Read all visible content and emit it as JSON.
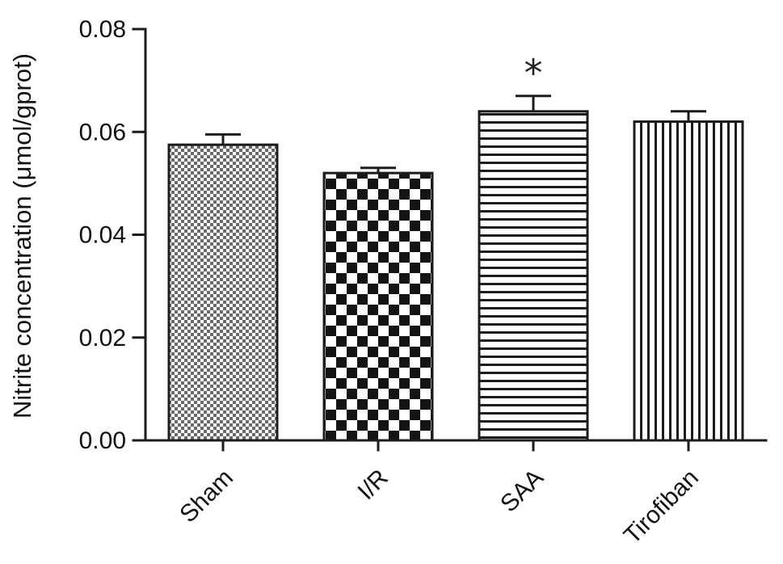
{
  "chart_data": {
    "type": "bar",
    "title": "",
    "xlabel": "",
    "ylabel": "Nitrite concentration (μmol/gprot)",
    "categories": [
      "Sham",
      "I/R",
      "SAA",
      "Tirofiban"
    ],
    "values": [
      0.0575,
      0.052,
      0.064,
      0.062
    ],
    "errors": [
      0.002,
      0.001,
      0.003,
      0.002
    ],
    "ylim": [
      0,
      0.08
    ],
    "yticks": [
      0,
      0.02,
      0.04,
      0.06,
      0.08
    ],
    "grid": false,
    "legend": false,
    "bar_fill_background": "#ffffff",
    "bar_outline_color": "#1c1c1c",
    "bar_patterns": [
      "dots",
      "checker",
      "hlines",
      "vlines"
    ],
    "annotations": [
      {
        "category": "SAA",
        "text": "*"
      }
    ]
  }
}
